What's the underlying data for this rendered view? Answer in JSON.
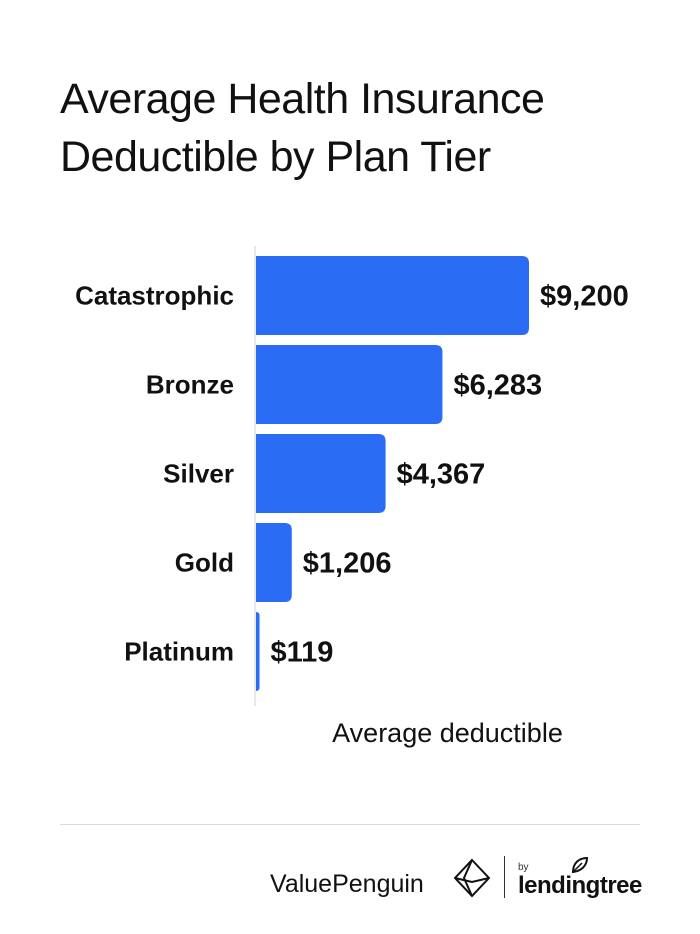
{
  "title_lines": [
    "Average Health Insurance",
    "Deductible by Plan Tier"
  ],
  "colors": {
    "bar": "#2a6df4",
    "text": "#111111",
    "axis": "#cfcfcf"
  },
  "chart_data": {
    "type": "bar",
    "orientation": "horizontal",
    "categories": [
      "Catastrophic",
      "Bronze",
      "Silver",
      "Gold",
      "Platinum"
    ],
    "values": [
      9200,
      6283,
      4367,
      1206,
      119
    ],
    "value_labels": [
      "$9,200",
      "$6,283",
      "$4,367",
      "$1,206",
      "$119"
    ],
    "title": "Average Health Insurance Deductible by Plan Tier",
    "xlabel": "Average deductible",
    "ylabel": "",
    "xlim": [
      0,
      9200
    ],
    "grid": false
  },
  "footer": {
    "brand": "ValuePenguin",
    "by": "by",
    "partner": "lendingtree",
    "brand_icon": "valuepenguin-logo-icon",
    "partner_icon": "lendingtree-leaf-icon"
  }
}
